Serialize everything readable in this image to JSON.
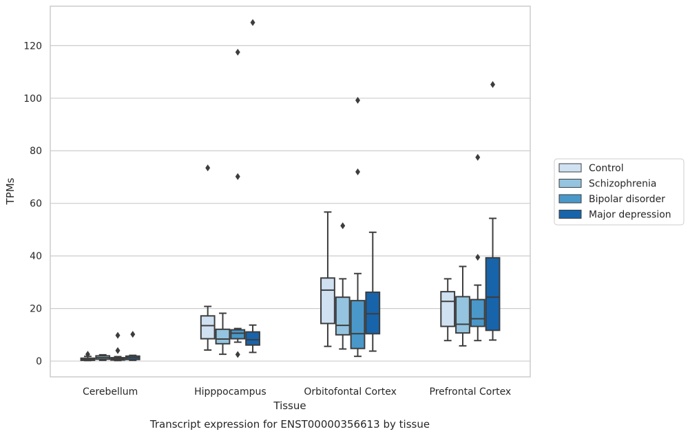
{
  "chart_data": {
    "type": "box",
    "title": "",
    "caption": "Transcript expression for ENST00000356613 by tissue",
    "xlabel": "Tissue",
    "ylabel": "TPMs",
    "ylim": [
      -6,
      135
    ],
    "yticks": [
      0,
      20,
      40,
      60,
      80,
      100,
      120
    ],
    "grid": "horizontal",
    "legend_position": "right",
    "categories": [
      "Cerebellum",
      "Hipppocampus",
      "Orbitofontal Cortex",
      "Prefrontal Cortex"
    ],
    "series": [
      {
        "name": "Control",
        "color": "#d0e1f2",
        "boxes": [
          {
            "whislo": 0.2,
            "q1": 0.3,
            "med": 0.6,
            "q3": 1.1,
            "whishi": 1.8,
            "fliers": [
              2.6
            ]
          },
          {
            "whislo": 4.2,
            "q1": 8.5,
            "med": 13.5,
            "q3": 17.2,
            "whishi": 20.8,
            "fliers": [
              73.5
            ]
          },
          {
            "whislo": 5.6,
            "q1": 14.3,
            "med": 27.0,
            "q3": 31.6,
            "whishi": 56.7,
            "fliers": []
          },
          {
            "whislo": 7.8,
            "q1": 13.2,
            "med": 22.7,
            "q3": 26.4,
            "whishi": 31.3,
            "fliers": []
          }
        ]
      },
      {
        "name": "Schizophrenia",
        "color": "#94c4df",
        "boxes": [
          {
            "whislo": 0.3,
            "q1": 0.7,
            "med": 1.3,
            "q3": 2.0,
            "whishi": 2.4,
            "fliers": []
          },
          {
            "whislo": 2.6,
            "q1": 6.6,
            "med": 8.4,
            "q3": 12.1,
            "whishi": 18.2,
            "fliers": []
          },
          {
            "whislo": 4.6,
            "q1": 10.0,
            "med": 13.6,
            "q3": 24.3,
            "whishi": 31.3,
            "fliers": [
              51.5
            ]
          },
          {
            "whislo": 5.8,
            "q1": 10.7,
            "med": 14.0,
            "q3": 24.5,
            "whishi": 36.0,
            "fliers": []
          }
        ]
      },
      {
        "name": "Bipolar disorder",
        "color": "#4a98c9",
        "boxes": [
          {
            "whislo": 0.2,
            "q1": 0.4,
            "med": 0.8,
            "q3": 1.3,
            "whishi": 1.7,
            "fliers": [
              4.0,
              9.8
            ]
          },
          {
            "whislo": 7.2,
            "q1": 8.5,
            "med": 10.6,
            "q3": 11.9,
            "whishi": 12.4,
            "fliers": [
              2.5,
              70.2,
              117.5
            ]
          },
          {
            "whislo": 1.8,
            "q1": 4.8,
            "med": 10.4,
            "q3": 23.0,
            "whishi": 33.3,
            "fliers": [
              72.0,
              99.2
            ]
          },
          {
            "whislo": 7.8,
            "q1": 13.2,
            "med": 16.1,
            "q3": 23.4,
            "whishi": 28.9,
            "fliers": [
              39.5,
              77.5
            ]
          }
        ]
      },
      {
        "name": "Major depression",
        "color": "#1764ab",
        "boxes": [
          {
            "whislo": 0.3,
            "q1": 0.6,
            "med": 1.3,
            "q3": 1.9,
            "whishi": 2.2,
            "fliers": [
              10.2
            ]
          },
          {
            "whislo": 3.3,
            "q1": 6.1,
            "med": 8.1,
            "q3": 11.1,
            "whishi": 13.7,
            "fliers": [
              128.8
            ]
          },
          {
            "whislo": 3.8,
            "q1": 10.4,
            "med": 18.0,
            "q3": 26.2,
            "whishi": 49.0,
            "fliers": []
          },
          {
            "whislo": 8.0,
            "q1": 11.7,
            "med": 24.3,
            "q3": 39.3,
            "whishi": 54.3,
            "fliers": [
              105.2
            ]
          }
        ]
      }
    ]
  }
}
